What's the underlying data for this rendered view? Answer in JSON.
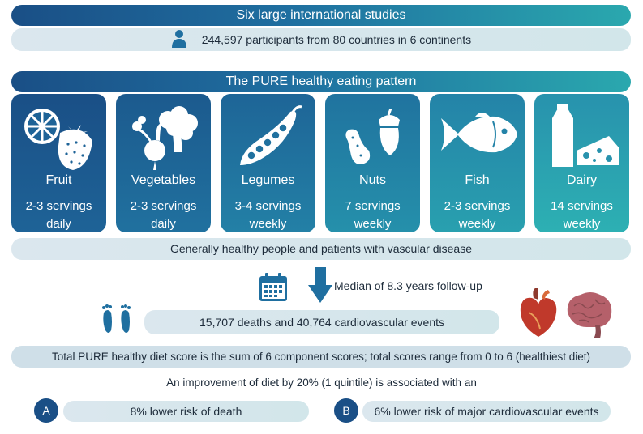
{
  "header": {
    "studies_title": "Six large international studies",
    "participants_text": "244,597 participants from 80 countries in 6 continents",
    "pattern_title": "The PURE healthy eating pattern"
  },
  "foods": [
    {
      "name": "Fruit",
      "servings": "2-3 servings daily",
      "icon": "fruit-icon"
    },
    {
      "name": "Vegetables",
      "servings": "2-3 servings daily",
      "icon": "vegetables-icon"
    },
    {
      "name": "Legumes",
      "servings": "3-4 servings weekly",
      "icon": "legumes-icon"
    },
    {
      "name": "Nuts",
      "servings": "7 servings weekly",
      "icon": "nuts-icon"
    },
    {
      "name": "Fish",
      "servings": "2-3 servings weekly",
      "icon": "fish-icon"
    },
    {
      "name": "Dairy",
      "servings": "14 servings weekly",
      "icon": "dairy-icon"
    }
  ],
  "population_text": "Generally healthy people and patients with vascular disease",
  "followup_text": "Median of 8.3 years follow-up",
  "events_text": "15,707 deaths and 40,764 cardiovascular events",
  "score_text": "Total PURE healthy diet score is the sum of 6 component scores; total scores range from 0 to 6 (healthiest diet)",
  "improvement_text": "An improvement of diet by 20% (1 quintile) is associated with an",
  "outcomes": [
    {
      "badge": "A",
      "text": "8% lower risk of  death"
    },
    {
      "badge": "B",
      "text": "6% lower risk of major cardiovascular events"
    }
  ],
  "colors": {
    "navy": "#1a4f86",
    "teal": "#2db0b3",
    "pill": "#d2e6ea",
    "arrow": "#1f6fa0",
    "heart": "#c0392b",
    "brain": "#b5606a"
  }
}
